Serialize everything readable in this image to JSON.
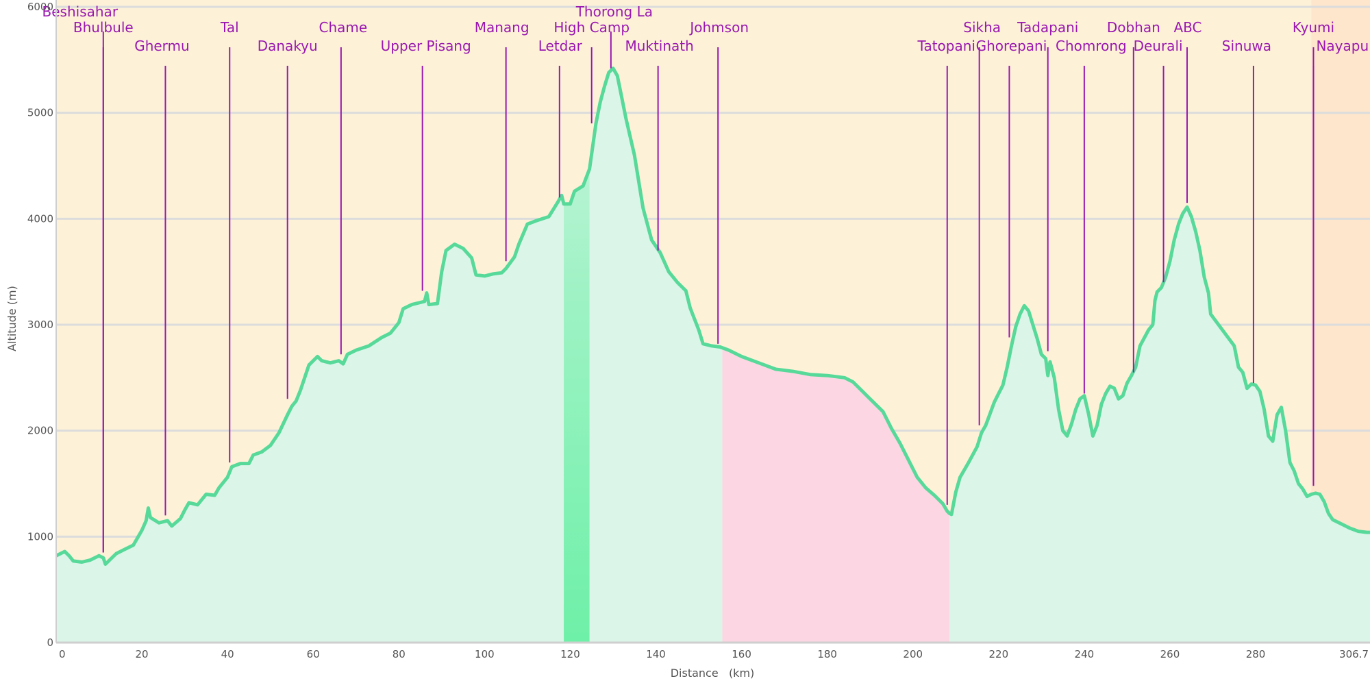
{
  "chart_data": {
    "type": "area",
    "xlabel": "Distance   (km)",
    "ylabel": "Altitude (m)",
    "xlim": [
      0,
      306.7
    ],
    "ylim": [
      0,
      6000
    ],
    "x_ticks": [
      "0",
      "20",
      "40",
      "60",
      "80",
      "100",
      "120",
      "140",
      "160",
      "180",
      "200",
      "220",
      "240",
      "260",
      "280",
      "306.7"
    ],
    "y_ticks": [
      "0",
      "1000",
      "2000",
      "3000",
      "4000",
      "5000",
      "6000"
    ],
    "grid": true,
    "colors": {
      "sky": "#fdf2d8",
      "sky_right": "#fde6cc",
      "fill": "#dbf5e8",
      "line": "#57d99a",
      "pink_region": "#fdd6e3",
      "green_band": "#6ef0a8",
      "gridline": "#dcdcdc",
      "marker": "#9a17b0"
    },
    "shaded_regions": [
      {
        "x0": 118.5,
        "x1": 124.5,
        "type": "green-band"
      },
      {
        "x0": 155.5,
        "x1": 208.5,
        "type": "pink"
      }
    ],
    "profile": [
      [
        0,
        820
      ],
      [
        1,
        840
      ],
      [
        2,
        860
      ],
      [
        3,
        820
      ],
      [
        4,
        770
      ],
      [
        6,
        760
      ],
      [
        8,
        780
      ],
      [
        10,
        820
      ],
      [
        11,
        800
      ],
      [
        11.5,
        740
      ],
      [
        12,
        760
      ],
      [
        14,
        840
      ],
      [
        16,
        880
      ],
      [
        18,
        920
      ],
      [
        20,
        1060
      ],
      [
        21,
        1150
      ],
      [
        21.5,
        1270
      ],
      [
        22,
        1180
      ],
      [
        24,
        1130
      ],
      [
        26,
        1150
      ],
      [
        27,
        1100
      ],
      [
        29,
        1170
      ],
      [
        30,
        1250
      ],
      [
        31,
        1320
      ],
      [
        33,
        1300
      ],
      [
        35,
        1400
      ],
      [
        37,
        1390
      ],
      [
        38,
        1460
      ],
      [
        40,
        1560
      ],
      [
        41,
        1660
      ],
      [
        43,
        1690
      ],
      [
        45,
        1690
      ],
      [
        46,
        1770
      ],
      [
        48,
        1800
      ],
      [
        50,
        1860
      ],
      [
        52,
        1980
      ],
      [
        54,
        2150
      ],
      [
        55,
        2230
      ],
      [
        56,
        2280
      ],
      [
        57,
        2380
      ],
      [
        59,
        2620
      ],
      [
        61,
        2700
      ],
      [
        62,
        2660
      ],
      [
        64,
        2640
      ],
      [
        66,
        2660
      ],
      [
        67,
        2630
      ],
      [
        68,
        2720
      ],
      [
        70,
        2760
      ],
      [
        73,
        2800
      ],
      [
        76,
        2880
      ],
      [
        78,
        2920
      ],
      [
        80,
        3020
      ],
      [
        81,
        3150
      ],
      [
        83,
        3190
      ],
      [
        86,
        3220
      ],
      [
        86.5,
        3300
      ],
      [
        87,
        3190
      ],
      [
        89,
        3200
      ],
      [
        90,
        3500
      ],
      [
        91,
        3700
      ],
      [
        93,
        3760
      ],
      [
        95,
        3720
      ],
      [
        97,
        3630
      ],
      [
        98,
        3470
      ],
      [
        100,
        3460
      ],
      [
        102,
        3480
      ],
      [
        104,
        3490
      ],
      [
        105,
        3530
      ],
      [
        107,
        3640
      ],
      [
        108,
        3760
      ],
      [
        110,
        3950
      ],
      [
        112,
        3980
      ],
      [
        115,
        4020
      ],
      [
        117,
        4150
      ],
      [
        118,
        4220
      ],
      [
        118.5,
        4140
      ],
      [
        120,
        4140
      ],
      [
        121,
        4260
      ],
      [
        123,
        4310
      ],
      [
        124.5,
        4470
      ],
      [
        126,
        4900
      ],
      [
        127,
        5100
      ],
      [
        128,
        5250
      ],
      [
        129,
        5380
      ],
      [
        130,
        5420
      ],
      [
        131,
        5350
      ],
      [
        132,
        5150
      ],
      [
        133,
        4950
      ],
      [
        135,
        4600
      ],
      [
        137,
        4100
      ],
      [
        139,
        3800
      ],
      [
        141,
        3680
      ],
      [
        143,
        3500
      ],
      [
        145,
        3400
      ],
      [
        147,
        3320
      ],
      [
        148,
        3160
      ],
      [
        150,
        2950
      ],
      [
        151,
        2820
      ],
      [
        153,
        2800
      ],
      [
        155,
        2790
      ],
      [
        157,
        2760
      ],
      [
        160,
        2700
      ],
      [
        164,
        2640
      ],
      [
        168,
        2580
      ],
      [
        172,
        2560
      ],
      [
        176,
        2530
      ],
      [
        180,
        2520
      ],
      [
        184,
        2500
      ],
      [
        186,
        2460
      ],
      [
        188,
        2380
      ],
      [
        190,
        2300
      ],
      [
        193,
        2180
      ],
      [
        195,
        2020
      ],
      [
        197,
        1880
      ],
      [
        199,
        1720
      ],
      [
        201,
        1560
      ],
      [
        203,
        1460
      ],
      [
        205,
        1390
      ],
      [
        207,
        1310
      ],
      [
        208,
        1240
      ],
      [
        208.5,
        1220
      ],
      [
        209,
        1210
      ],
      [
        210,
        1420
      ],
      [
        211,
        1560
      ],
      [
        213,
        1700
      ],
      [
        215,
        1850
      ],
      [
        216,
        1980
      ],
      [
        217,
        2050
      ],
      [
        218,
        2160
      ],
      [
        219,
        2270
      ],
      [
        220,
        2350
      ],
      [
        221,
        2430
      ],
      [
        222,
        2600
      ],
      [
        223,
        2800
      ],
      [
        224,
        2980
      ],
      [
        225,
        3100
      ],
      [
        226,
        3180
      ],
      [
        227,
        3130
      ],
      [
        228,
        3000
      ],
      [
        229,
        2870
      ],
      [
        230,
        2720
      ],
      [
        231,
        2680
      ],
      [
        231.5,
        2520
      ],
      [
        232,
        2650
      ],
      [
        233,
        2500
      ],
      [
        234,
        2200
      ],
      [
        235,
        2000
      ],
      [
        236,
        1950
      ],
      [
        237,
        2060
      ],
      [
        238,
        2200
      ],
      [
        239,
        2300
      ],
      [
        240,
        2330
      ],
      [
        241,
        2160
      ],
      [
        242,
        1950
      ],
      [
        243,
        2050
      ],
      [
        244,
        2250
      ],
      [
        245,
        2350
      ],
      [
        246,
        2420
      ],
      [
        247,
        2400
      ],
      [
        248,
        2300
      ],
      [
        249,
        2330
      ],
      [
        250,
        2450
      ],
      [
        251,
        2520
      ],
      [
        252,
        2600
      ],
      [
        253,
        2800
      ],
      [
        255,
        2950
      ],
      [
        256,
        3000
      ],
      [
        256.5,
        3230
      ],
      [
        257,
        3310
      ],
      [
        258,
        3350
      ],
      [
        259,
        3450
      ],
      [
        260,
        3600
      ],
      [
        261,
        3800
      ],
      [
        262,
        3950
      ],
      [
        263,
        4050
      ],
      [
        264,
        4110
      ],
      [
        265,
        4020
      ],
      [
        266,
        3880
      ],
      [
        267,
        3700
      ],
      [
        268,
        3450
      ],
      [
        269,
        3300
      ],
      [
        269.5,
        3100
      ],
      [
        275,
        2800
      ],
      [
        276,
        2600
      ],
      [
        277,
        2550
      ],
      [
        278,
        2400
      ],
      [
        279,
        2440
      ],
      [
        280,
        2430
      ],
      [
        281,
        2370
      ],
      [
        282,
        2200
      ],
      [
        283,
        1950
      ],
      [
        284,
        1900
      ],
      [
        285,
        2150
      ],
      [
        286,
        2220
      ],
      [
        287,
        2000
      ],
      [
        288,
        1700
      ],
      [
        289,
        1620
      ],
      [
        290,
        1500
      ],
      [
        291,
        1450
      ],
      [
        292,
        1380
      ],
      [
        293,
        1400
      ],
      [
        294,
        1410
      ],
      [
        295,
        1400
      ],
      [
        296,
        1330
      ],
      [
        297,
        1220
      ],
      [
        298,
        1160
      ],
      [
        300,
        1120
      ],
      [
        302,
        1080
      ],
      [
        304,
        1050
      ],
      [
        306,
        1040
      ],
      [
        306.7,
        1040
      ]
    ],
    "waypoints": [
      {
        "name": "Beshisahar",
        "x": 11,
        "alt": 850,
        "row": 0,
        "anchor": "middle",
        "dx": -34
      },
      {
        "name": "Bhulbule",
        "x": 11,
        "alt": 850,
        "row": 1,
        "anchor": "middle",
        "dx": 0
      },
      {
        "name": "Ghermu",
        "x": 25.5,
        "alt": 1200,
        "row": 2,
        "anchor": "middle",
        "dx": -5
      },
      {
        "name": "Tal",
        "x": 40.5,
        "alt": 1700,
        "row": 1,
        "anchor": "middle",
        "dx": 0
      },
      {
        "name": "Danakyu",
        "x": 54,
        "alt": 2300,
        "row": 2,
        "anchor": "middle",
        "dx": 0
      },
      {
        "name": "Chame",
        "x": 66.5,
        "alt": 2720,
        "row": 1,
        "anchor": "middle",
        "dx": 3
      },
      {
        "name": "Upper Pisang",
        "x": 85.5,
        "alt": 3320,
        "row": 2,
        "anchor": "middle",
        "dx": 5
      },
      {
        "name": "Manang",
        "x": 105,
        "alt": 3600,
        "row": 1,
        "anchor": "middle",
        "dx": -6
      },
      {
        "name": "Letdar",
        "x": 117.5,
        "alt": 4200,
        "row": 2,
        "anchor": "middle",
        "dx": 1
      },
      {
        "name": "High Camp",
        "x": 125,
        "alt": 4900,
        "row": 1,
        "anchor": "middle",
        "dx": 0
      },
      {
        "name": "Thorong La",
        "x": 129.5,
        "alt": 5420,
        "row": 0,
        "anchor": "middle",
        "dx": 5
      },
      {
        "name": "Muktinath",
        "x": 140.5,
        "alt": 3700,
        "row": 2,
        "anchor": "middle",
        "dx": 2
      },
      {
        "name": "Johmson",
        "x": 154.5,
        "alt": 2820,
        "row": 1,
        "anchor": "middle",
        "dx": 2
      },
      {
        "name": "Tatopani",
        "x": 208,
        "alt": 1300,
        "row": 2,
        "anchor": "middle",
        "dx": -1
      },
      {
        "name": "Sikha",
        "x": 215.5,
        "alt": 2050,
        "row": 1,
        "anchor": "middle",
        "dx": 4
      },
      {
        "name": "Ghorepani",
        "x": 222.5,
        "alt": 2880,
        "row": 2,
        "anchor": "middle",
        "dx": 3
      },
      {
        "name": "Tadapani",
        "x": 231.5,
        "alt": 2750,
        "row": 1,
        "anchor": "middle",
        "dx": 0
      },
      {
        "name": "Chomrong",
        "x": 240,
        "alt": 2350,
        "row": 2,
        "anchor": "middle",
        "dx": 10
      },
      {
        "name": "Dobhan",
        "x": 251.5,
        "alt": 2550,
        "row": 1,
        "anchor": "middle",
        "dx": 0
      },
      {
        "name": "Deurali",
        "x": 258.5,
        "alt": 3400,
        "row": 2,
        "anchor": "middle",
        "dx": -8
      },
      {
        "name": "ABC",
        "x": 264,
        "alt": 4150,
        "row": 1,
        "anchor": "middle",
        "dx": 1
      },
      {
        "name": "Sinuwa",
        "x": 279.5,
        "alt": 2450,
        "row": 2,
        "anchor": "middle",
        "dx": -10
      },
      {
        "name": "Kyumi",
        "x": 293.5,
        "alt": 1480,
        "row": 1,
        "anchor": "middle",
        "dx": 0
      },
      {
        "name": "Nayapul",
        "x": 293.5,
        "alt": 1480,
        "row": 2,
        "anchor": "start",
        "dx": 4
      }
    ]
  }
}
